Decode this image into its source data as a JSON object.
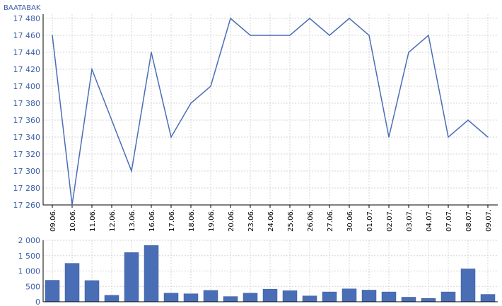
{
  "chart_data": [
    {
      "type": "line",
      "title": "BAATABAK",
      "categories": [
        "09.06.",
        "10.06.",
        "11.06.",
        "12.06.",
        "13.06.",
        "16.06.",
        "17.06.",
        "18.06.",
        "19.06.",
        "20.06.",
        "23.06.",
        "24.06.",
        "25.06.",
        "26.06.",
        "27.06.",
        "30.06.",
        "01.07.",
        "02.07.",
        "03.07.",
        "04.07.",
        "07.07.",
        "08.07.",
        "09.07."
      ],
      "series": [
        {
          "values": [
            17460,
            17260,
            17420,
            17360,
            17300,
            17440,
            17340,
            17380,
            17400,
            17480,
            17460,
            17460,
            17460,
            17480,
            17460,
            17480,
            17460,
            17340,
            17440,
            17460,
            17340,
            17360,
            17340
          ]
        }
      ],
      "ylim": [
        17260,
        17480
      ],
      "yticks": [
        17260,
        17280,
        17300,
        17320,
        17340,
        17360,
        17380,
        17400,
        17420,
        17440,
        17460,
        17480
      ],
      "ytick_labels": [
        "17 260",
        "17 280",
        "17 300",
        "17 320",
        "17 340",
        "17 360",
        "17 380",
        "17 400",
        "17 420",
        "17 440",
        "17 460",
        "17 480"
      ],
      "grid": true,
      "color": "#4a6eb5"
    },
    {
      "type": "bar",
      "title": "",
      "values": [
        700,
        1250,
        690,
        210,
        1600,
        1830,
        280,
        260,
        370,
        170,
        280,
        410,
        360,
        190,
        320,
        420,
        380,
        320,
        150,
        110,
        320,
        1070,
        240
      ],
      "ylim": [
        0,
        2000
      ],
      "yticks": [
        0,
        500,
        1000,
        1500,
        2000
      ],
      "ytick_labels": [
        "0",
        "500",
        "1 000",
        "1 500",
        "2 000"
      ],
      "grid": true,
      "color": "#4a6eb5"
    }
  ]
}
